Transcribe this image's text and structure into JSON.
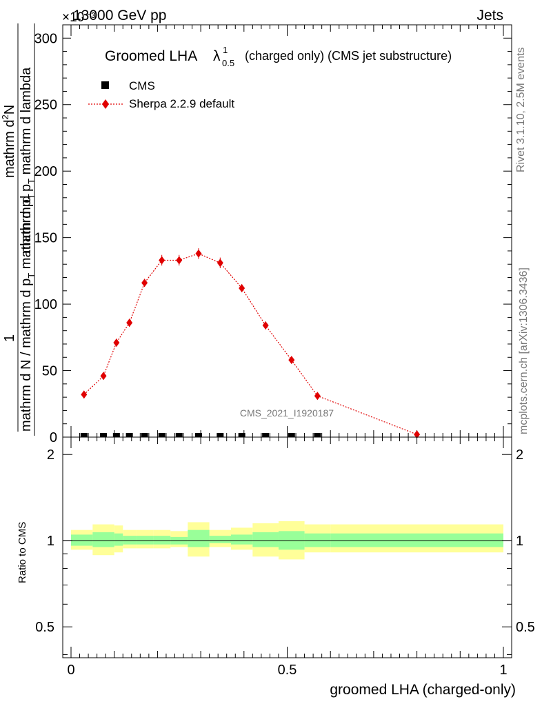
{
  "header": {
    "energy_label": "13000 GeV pp",
    "process_label": "Jets",
    "exponent_label": "×10⁻³"
  },
  "side_labels": {
    "rivet": "Rivet 3.1.10,  2.5M events",
    "mcplots": "mcplots.cern.ch [arXiv:1306.3436]"
  },
  "chart_data": [
    {
      "type": "line",
      "title": {
        "prefix": "Groomed LHA",
        "symbol": "λ",
        "sup": "1",
        "sub": "0.5",
        "suffix": "(charged only) (CMS jet substructure)"
      },
      "ylabel": {
        "numerator_top": "mathrm d",
        "numerator_top_sup": "2",
        "numerator_top_rest": "N",
        "numerator_bottom": "mathrm d p",
        "numerator_bottom_sub": "T",
        "numerator_bottom_rest": " mathrm d lambda",
        "fraction_one": "1",
        "denominator": "mathrm d N / mathrm d p",
        "denominator_sub": "T",
        "denominator_rest": " mathrm d p",
        "denominator_sub2": "T"
      },
      "watermark": "CMS_2021_I1920187",
      "xlim": [
        0,
        1
      ],
      "ylim": [
        0,
        310
      ],
      "yticks": [
        0,
        50,
        100,
        150,
        200,
        250,
        300
      ],
      "yticklabels": [
        "0",
        "50",
        "100",
        "150",
        "200",
        "250",
        "300"
      ],
      "legend_position": "top-left",
      "series": [
        {
          "name": "CMS",
          "marker": "square",
          "color": "#000000",
          "x": [
            0.03,
            0.075,
            0.105,
            0.135,
            0.17,
            0.21,
            0.25,
            0.295,
            0.345,
            0.395,
            0.45,
            0.51,
            0.57
          ],
          "y": [
            0.5,
            0.5,
            0.5,
            0.5,
            0.5,
            0.5,
            0.5,
            0.5,
            0.5,
            0.5,
            0.5,
            0.5,
            0.5
          ]
        },
        {
          "name": "Sherpa 2.2.9 default",
          "marker": "diamond",
          "color": "#e00000",
          "x": [
            0.03,
            0.075,
            0.105,
            0.135,
            0.17,
            0.21,
            0.25,
            0.295,
            0.345,
            0.395,
            0.45,
            0.51,
            0.57,
            0.8
          ],
          "y": [
            32,
            46,
            71,
            86,
            116,
            133,
            133,
            138,
            131,
            112,
            84,
            58,
            31,
            2
          ],
          "yerr": [
            2,
            3,
            3,
            3,
            3,
            4,
            4,
            4,
            4,
            3,
            3,
            2,
            2,
            1
          ]
        }
      ]
    },
    {
      "type": "area",
      "ylabel": "Ratio to CMS",
      "xlabel": "groomed LHA (charged-only)",
      "xlim": [
        0,
        1
      ],
      "ylim": [
        0.39,
        2.3
      ],
      "log_y": true,
      "xticks": [
        0,
        0.5,
        1
      ],
      "xticklabels": [
        "0",
        "0.5",
        "1"
      ],
      "yticks": [
        0.5,
        1,
        2
      ],
      "yticklabels": [
        "0.5",
        "1",
        "2"
      ],
      "bins": [
        0,
        0.05,
        0.1,
        0.12,
        0.15,
        0.19,
        0.23,
        0.27,
        0.32,
        0.37,
        0.42,
        0.48,
        0.54,
        0.6,
        1.0
      ],
      "band_inner": [
        [
          0.96,
          1.05
        ],
        [
          0.95,
          1.07
        ],
        [
          0.96,
          1.06
        ],
        [
          0.97,
          1.04
        ],
        [
          0.97,
          1.04
        ],
        [
          0.97,
          1.04
        ],
        [
          0.97,
          1.03
        ],
        [
          0.95,
          1.09
        ],
        [
          0.98,
          1.04
        ],
        [
          0.97,
          1.05
        ],
        [
          0.95,
          1.07
        ],
        [
          0.93,
          1.08
        ],
        [
          0.95,
          1.06
        ],
        [
          0.95,
          1.06
        ]
      ],
      "band_outer": [
        [
          0.93,
          1.09
        ],
        [
          0.89,
          1.14
        ],
        [
          0.91,
          1.13
        ],
        [
          0.94,
          1.09
        ],
        [
          0.94,
          1.09
        ],
        [
          0.94,
          1.09
        ],
        [
          0.95,
          1.08
        ],
        [
          0.88,
          1.16
        ],
        [
          0.95,
          1.09
        ],
        [
          0.93,
          1.11
        ],
        [
          0.88,
          1.15
        ],
        [
          0.86,
          1.17
        ],
        [
          0.91,
          1.14
        ],
        [
          0.91,
          1.14
        ]
      ],
      "inner_color": "#99ff99",
      "outer_color": "#ffff99"
    }
  ]
}
